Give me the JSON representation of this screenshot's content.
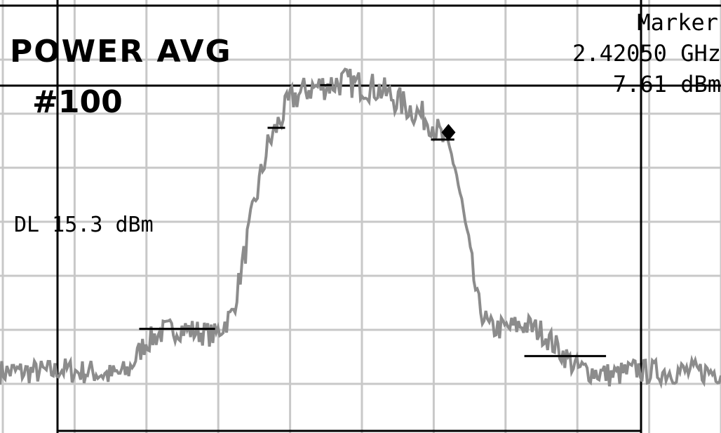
{
  "screen": {
    "mode_label": "POWER AVG",
    "avg_count": "#100",
    "display_line_label": "DL 15.3 dBm",
    "marker": {
      "title": "Marker",
      "frequency": "2.42050 GHz",
      "level": "7.61 dBm"
    }
  },
  "colors": {
    "trace": "#8c8c8c",
    "grid": "#c8c8c8",
    "frame": "#000000",
    "background": "#ffffff"
  },
  "chart_data": {
    "type": "line",
    "title": "",
    "xlabel": "",
    "ylabel": "",
    "grid": true,
    "marker": {
      "x": 0.67,
      "y": 0.79,
      "shape": "diamond"
    },
    "series": [
      {
        "x": [
          0.0,
          0.03,
          0.06,
          0.09,
          0.12,
          0.15,
          0.18,
          0.21,
          0.24,
          0.27,
          0.3,
          0.32,
          0.34,
          0.36,
          0.38,
          0.4,
          0.43,
          0.46,
          0.49,
          0.52,
          0.55,
          0.58,
          0.61,
          0.64,
          0.66,
          0.68,
          0.7,
          0.72,
          0.74,
          0.77,
          0.8,
          0.83,
          0.86,
          0.89,
          0.92,
          0.95,
          0.98,
          1.0
        ],
        "values": [
          0.14,
          0.13,
          0.13,
          0.12,
          0.13,
          0.21,
          0.24,
          0.25,
          0.24,
          0.23,
          0.29,
          0.45,
          0.61,
          0.75,
          0.82,
          0.88,
          0.91,
          0.92,
          0.93,
          0.92,
          0.91,
          0.88,
          0.85,
          0.82,
          0.77,
          0.71,
          0.52,
          0.32,
          0.25,
          0.25,
          0.26,
          0.24,
          0.19,
          0.14,
          0.13,
          0.12,
          0.13,
          0.14
        ],
        "noise": 0.035
      }
    ]
  }
}
